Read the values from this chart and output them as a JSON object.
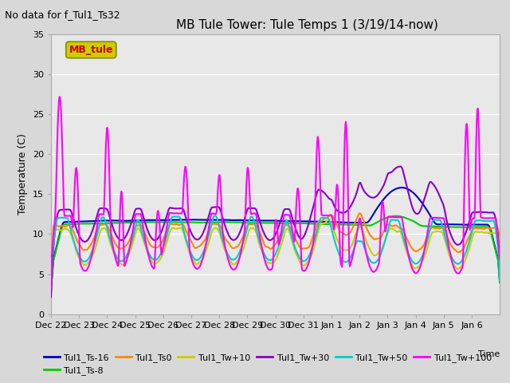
{
  "title": "MB Tule Tower: Tule Temps 1 (3/19/14-now)",
  "no_data_text": "No data for f_Tul1_Ts32",
  "xlabel": "Time",
  "ylabel": "Temperature (C)",
  "ylim": [
    0,
    35
  ],
  "yticks": [
    0,
    5,
    10,
    15,
    20,
    25,
    30,
    35
  ],
  "plot_bg_color": "#e8e8e8",
  "fig_bg_color": "#d8d8d8",
  "grid_color": "white",
  "series": {
    "Tul1_Ts-16": {
      "color": "#0000cc",
      "lw": 1.5
    },
    "Tul1_Ts-8": {
      "color": "#00cc00",
      "lw": 1.5
    },
    "Tul1_Ts0": {
      "color": "#ff8800",
      "lw": 1.5
    },
    "Tul1_Tw+10": {
      "color": "#cccc00",
      "lw": 1.5
    },
    "Tul1_Tw+30": {
      "color": "#8800cc",
      "lw": 1.5
    },
    "Tul1_Tw+50": {
      "color": "#00cccc",
      "lw": 1.5
    },
    "Tul1_Tw+100": {
      "color": "#ff00ff",
      "lw": 1.5
    }
  },
  "tick_labels": [
    "Dec 22",
    "Dec 23",
    "Dec 24",
    "Dec 25",
    "Dec 26",
    "Dec 27",
    "Dec 28",
    "Dec 29",
    "Dec 30",
    "Dec 31",
    "Jan 1",
    "Jan 2",
    "Jan 3",
    "Jan 4",
    "Jan 5",
    "Jan 6"
  ],
  "mb_tule_text": "MB_tule",
  "mb_tule_facecolor": "#cccc00",
  "mb_tule_edgecolor": "#888800",
  "mb_tule_textcolor": "#cc0000"
}
